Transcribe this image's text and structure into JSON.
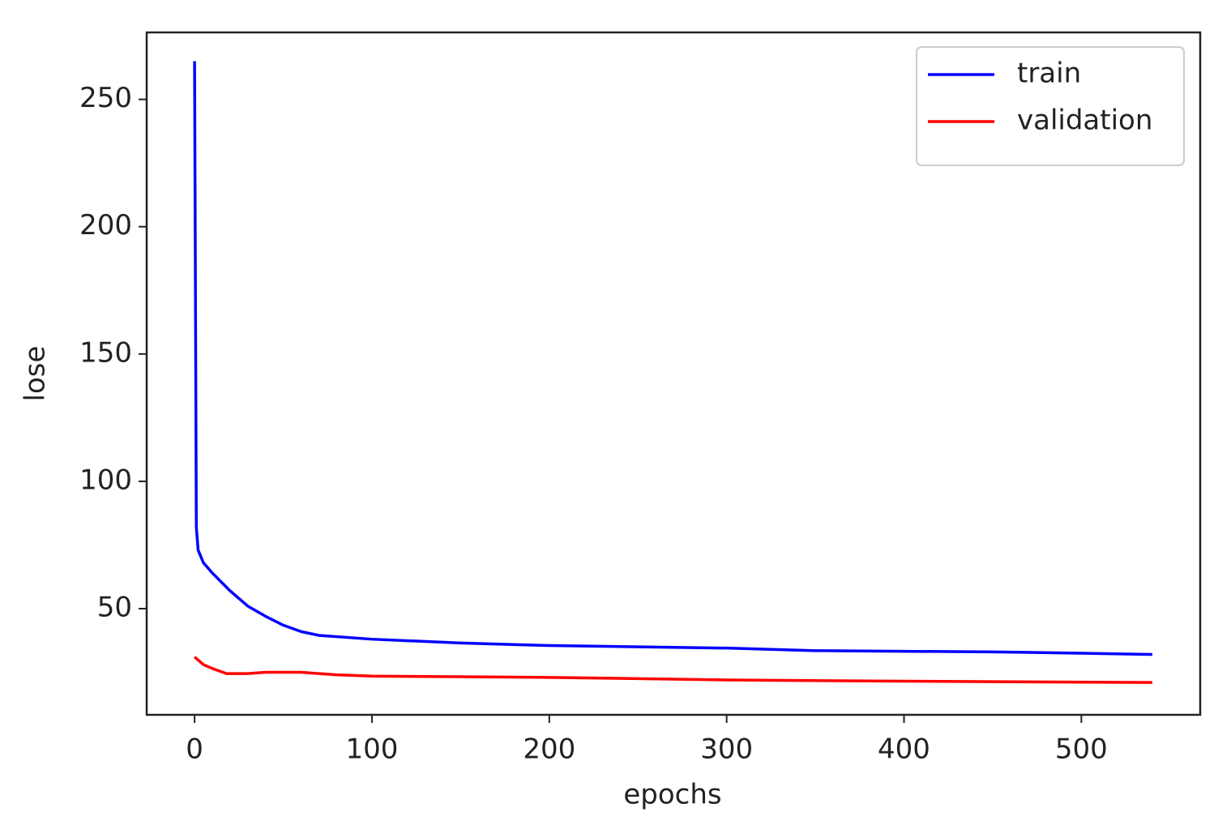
{
  "chart_data": {
    "type": "line",
    "x_label": "epochs",
    "y_label": "lose",
    "xlim": [
      -27,
      567
    ],
    "xticks": [
      0,
      100,
      200,
      300,
      400,
      500
    ],
    "ylim": [
      8.3,
      276.3
    ],
    "yticks": [
      50,
      100,
      150,
      200,
      250
    ],
    "legend": "upper right",
    "series": [
      {
        "name": "train",
        "color": "#0000ff",
        "x": [
          0,
          1,
          2,
          5,
          10,
          20,
          30,
          40,
          50,
          60,
          70,
          100,
          150,
          200,
          300,
          350,
          450,
          500,
          540
        ],
        "values": [
          265,
          82,
          73,
          68,
          64,
          57,
          51,
          47,
          43.5,
          41,
          39.5,
          38,
          36.5,
          35.5,
          34.5,
          33.5,
          33,
          32.5,
          32
        ]
      },
      {
        "name": "validation",
        "color": "#ff0000",
        "x": [
          0,
          5,
          10,
          18,
          30,
          40,
          60,
          80,
          100,
          200,
          300,
          400,
          540
        ],
        "values": [
          31,
          28,
          26.5,
          24.5,
          24.5,
          25,
          25,
          24,
          23.5,
          23,
          22,
          21.5,
          21
        ]
      }
    ]
  }
}
